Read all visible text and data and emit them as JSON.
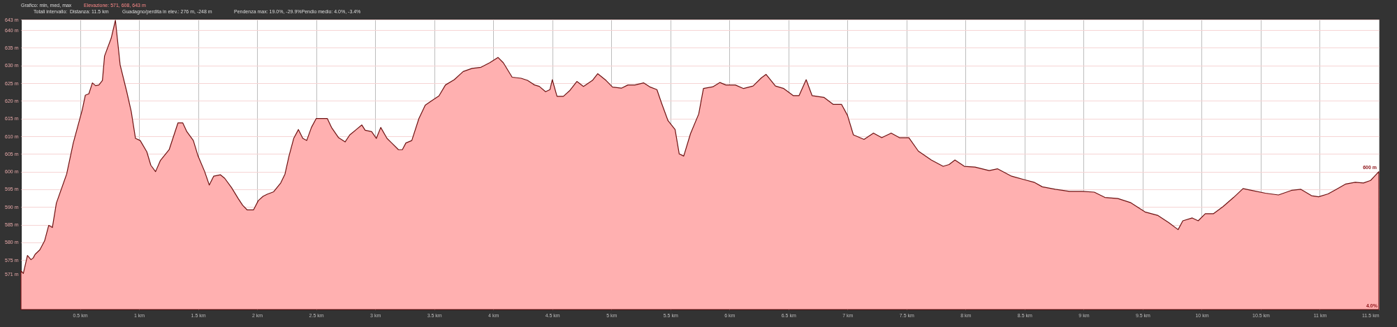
{
  "chart_data": {
    "type": "area",
    "title": "Grafico: min, med, max",
    "subtitle": "Totali intervallo:",
    "annotations": [
      "Elevazione: 571, 608, 643 m",
      "Distanza: 11.5 km",
      "Guadagno/perdita in elev.: 276 m, -248 m",
      "Pendenza max: 19.0%, -29.9%Pendio medio: 4.0%, -3.4%",
      "4.0%",
      {
        "text": "600 m",
        "x": 11.5,
        "y": 600
      }
    ],
    "x": [
      0,
      0.02,
      0.055,
      0.085,
      0.104,
      0.12,
      0.16,
      0.2,
      0.235,
      0.266,
      0.3,
      0.387,
      0.443,
      0.52,
      0.545,
      0.575,
      0.605,
      0.632,
      0.66,
      0.69,
      0.708,
      0.764,
      0.8,
      0.84,
      0.896,
      0.934,
      0.97,
      1.01,
      1.066,
      1.1,
      1.14,
      1.18,
      1.255,
      1.33,
      1.37,
      1.405,
      1.46,
      1.5,
      1.556,
      1.595,
      1.632,
      1.69,
      1.726,
      1.783,
      1.84,
      1.877,
      1.915,
      1.97,
      2.01,
      2.05,
      2.085,
      2.14,
      2.2,
      2.236,
      2.27,
      2.31,
      2.35,
      2.387,
      2.42,
      2.46,
      2.5,
      2.56,
      2.595,
      2.63,
      2.69,
      2.745,
      2.785,
      2.84,
      2.887,
      2.915,
      2.97,
      3.01,
      3.047,
      3.1,
      3.14,
      3.197,
      3.23,
      3.26,
      3.31,
      3.37,
      3.424,
      3.48,
      3.54,
      3.595,
      3.67,
      3.745,
      3.82,
      3.896,
      3.97,
      4.04,
      4.085,
      4.16,
      4.236,
      4.29,
      4.35,
      4.39,
      4.443,
      4.48,
      4.5,
      4.54,
      4.594,
      4.65,
      4.708,
      4.764,
      4.84,
      4.885,
      4.955,
      5.01,
      5.085,
      5.14,
      5.2,
      5.273,
      5.33,
      5.386,
      5.424,
      5.48,
      5.54,
      5.575,
      5.613,
      5.67,
      5.74,
      5.78,
      5.86,
      5.92,
      5.97,
      6.05,
      6.12,
      6.2,
      6.27,
      6.31,
      6.39,
      6.46,
      6.54,
      6.59,
      6.65,
      6.7,
      6.8,
      6.88,
      6.95,
      7.0,
      7.05,
      7.14,
      7.22,
      7.29,
      7.37,
      7.44,
      7.52,
      7.6,
      7.71,
      7.81,
      7.86,
      7.91,
      7.99,
      8.08,
      8.2,
      8.27,
      8.39,
      8.5,
      8.58,
      8.65,
      8.76,
      8.88,
      8.99,
      9.09,
      9.18,
      9.29,
      9.4,
      9.52,
      9.63,
      9.72,
      9.8,
      9.84,
      9.92,
      9.97,
      10.03,
      10.1,
      10.18,
      10.27,
      10.35,
      10.42,
      10.54,
      10.65,
      10.76,
      10.84,
      10.93,
      10.99,
      11.07,
      11.14,
      11.22,
      11.3,
      11.37,
      11.43,
      11.5
    ],
    "series": [
      {
        "color": "#ffb0b0",
        "values": [
          572,
          571.2,
          576.3,
          575.1,
          575.6,
          576.6,
          577.9,
          580.4,
          584.8,
          584.2,
          591.1,
          599.3,
          608.1,
          617.6,
          621.6,
          622,
          625.1,
          624.3,
          624.5,
          625.8,
          632.7,
          637.7,
          642.8,
          630.2,
          622.6,
          617,
          609.4,
          608.8,
          605.6,
          601.8,
          600,
          603.1,
          606.2,
          613.8,
          613.8,
          611.3,
          608.8,
          604.4,
          600,
          596.2,
          598.7,
          599.1,
          598.1,
          595.5,
          592.4,
          590.5,
          589.2,
          589.2,
          591.8,
          593,
          593.6,
          594.3,
          596.8,
          599.3,
          604.4,
          609.4,
          611.9,
          609.4,
          608.8,
          612.5,
          615,
          615,
          615,
          612.5,
          609.6,
          608.4,
          610.4,
          611.9,
          613.2,
          611.7,
          611.3,
          609.4,
          612.5,
          609.4,
          608.1,
          606.2,
          606.2,
          608.1,
          608.8,
          615,
          618.8,
          620.1,
          621.4,
          624.5,
          626,
          628.3,
          629.2,
          629.5,
          630.8,
          632.3,
          630.8,
          626.7,
          626.4,
          625.8,
          624.5,
          624.1,
          622.6,
          623.2,
          626,
          621.3,
          621.3,
          623,
          625.5,
          624.1,
          625.8,
          627.7,
          625.8,
          623.9,
          623.6,
          624.5,
          624.5,
          625.1,
          623.9,
          623.2,
          619.5,
          614.4,
          611.9,
          605,
          604.4,
          610.7,
          616.3,
          623.5,
          624,
          625.2,
          624.5,
          624.5,
          623.5,
          624.2,
          626.5,
          627.5,
          624.2,
          623.5,
          621.5,
          621.5,
          626,
          621.5,
          621,
          619,
          619,
          615.9,
          610.4,
          609.1,
          610.9,
          609.6,
          610.9,
          609.6,
          609.6,
          605.8,
          603.3,
          601.5,
          602,
          603.3,
          601.5,
          601.3,
          600.3,
          600.8,
          598.7,
          597.7,
          597,
          595.7,
          595,
          594.4,
          594.4,
          594.2,
          592.7,
          592.4,
          591.2,
          588.6,
          587.6,
          585.6,
          583.6,
          586.1,
          586.9,
          586.1,
          588.1,
          588.1,
          590.1,
          592.7,
          595.2,
          594.7,
          593.9,
          593.4,
          594.7,
          595,
          593.2,
          592.9,
          593.7,
          595,
          596.5,
          597,
          596.8,
          597.5,
          600
        ]
      }
    ],
    "xlim": [
      0,
      11.5
    ],
    "ylim": [
      561,
      643
    ],
    "xticks": [
      {
        "value": 0.5,
        "label": "0.5 km"
      },
      {
        "value": 1,
        "label": "1 km"
      },
      {
        "value": 1.5,
        "label": "1.5 km"
      },
      {
        "value": 2,
        "label": "2 km"
      },
      {
        "value": 2.5,
        "label": "2.5 km"
      },
      {
        "value": 3,
        "label": "3 km"
      },
      {
        "value": 3.5,
        "label": "3.5 km"
      },
      {
        "value": 4,
        "label": "4 km"
      },
      {
        "value": 4.5,
        "label": "4.5 km"
      },
      {
        "value": 5,
        "label": "5 km"
      },
      {
        "value": 5.5,
        "label": "5.5 km"
      },
      {
        "value": 6,
        "label": "6 km"
      },
      {
        "value": 6.5,
        "label": "6.5 km"
      },
      {
        "value": 7,
        "label": "7 km"
      },
      {
        "value": 7.5,
        "label": "7.5 km"
      },
      {
        "value": 8,
        "label": "8 km"
      },
      {
        "value": 8.5,
        "label": "8.5 km"
      },
      {
        "value": 9,
        "label": "9 km"
      },
      {
        "value": 9.5,
        "label": "9.5 km"
      },
      {
        "value": 10,
        "label": "10 km"
      },
      {
        "value": 10.5,
        "label": "10.5 km"
      },
      {
        "value": 11,
        "label": "11 km"
      },
      {
        "value": 11.5,
        "label": "11.5 km"
      }
    ],
    "yticks": [
      {
        "value": 571,
        "label": "571 m"
      },
      {
        "value": 575,
        "label": "575 m"
      },
      {
        "value": 580,
        "label": "580 m"
      },
      {
        "value": 585,
        "label": "585 m"
      },
      {
        "value": 590,
        "label": "590 m"
      },
      {
        "value": 595,
        "label": "595 m"
      },
      {
        "value": 600,
        "label": "600 m"
      },
      {
        "value": 605,
        "label": "605 m"
      },
      {
        "value": 610,
        "label": "610 m"
      },
      {
        "value": 615,
        "label": "615 m"
      },
      {
        "value": 620,
        "label": "620 m"
      },
      {
        "value": 625,
        "label": "625 m"
      },
      {
        "value": 630,
        "label": "630 m"
      },
      {
        "value": 635,
        "label": "635 m"
      },
      {
        "value": 640,
        "label": "640 m"
      },
      {
        "value": 643,
        "label": "643 m"
      }
    ],
    "grid": true
  }
}
